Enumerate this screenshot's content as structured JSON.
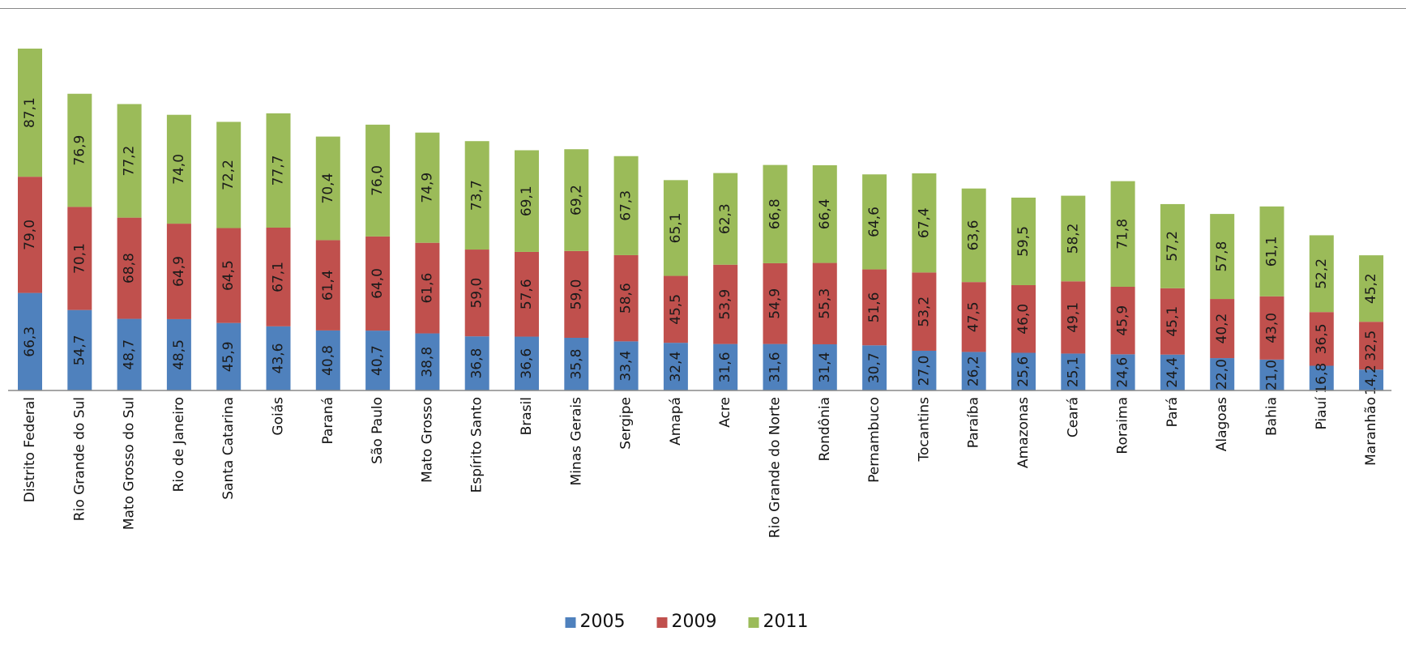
{
  "chart_data": {
    "type": "bar",
    "stacked": true,
    "title": "",
    "xlabel": "",
    "ylabel": "",
    "legend_position": "bottom",
    "grid": false,
    "categories": [
      "Distrito Federal",
      "Rio Grande do Sul",
      "Mato Grosso do Sul",
      "Rio de Janeiro",
      "Santa Catarina",
      "Goiás",
      "Paraná",
      "São Paulo",
      "Mato Grosso",
      "Espírito Santo",
      "Brasil",
      "Minas Gerais",
      "Sergipe",
      "Amapá",
      "Acre",
      "Rio Grande do Norte",
      "Rondônia",
      "Pernambuco",
      "Tocantins",
      "Paraíba",
      "Amazonas",
      "Ceará",
      "Roraima",
      "Pará",
      "Alagoas",
      "Bahia",
      "Piauí",
      "Maranhão"
    ],
    "series": [
      {
        "name": "2005",
        "color": "#4F81BD",
        "values": [
          66.3,
          54.7,
          48.7,
          48.5,
          45.9,
          43.6,
          40.8,
          40.7,
          38.8,
          36.8,
          36.6,
          35.8,
          33.4,
          32.4,
          31.6,
          31.6,
          31.4,
          30.7,
          27.0,
          26.2,
          25.6,
          25.1,
          24.6,
          24.4,
          22.0,
          21.0,
          16.8,
          14.2
        ],
        "labels": [
          "66,3",
          "54,7",
          "48,7",
          "48,5",
          "45,9",
          "43,6",
          "40,8",
          "40,7",
          "38,8",
          "36,8",
          "36,6",
          "35,8",
          "33,4",
          "32,4",
          "31,6",
          "31,6",
          "31,4",
          "30,7",
          "27,0",
          "26,2",
          "25,6",
          "25,1",
          "24,6",
          "24,4",
          "22,0",
          "21,0",
          "16,8",
          "14,2"
        ]
      },
      {
        "name": "2009",
        "color": "#C0504D",
        "values": [
          79.0,
          70.1,
          68.8,
          64.9,
          64.5,
          67.1,
          61.4,
          64.0,
          61.6,
          59.0,
          57.6,
          59.0,
          58.6,
          45.5,
          53.9,
          54.9,
          55.3,
          51.6,
          53.2,
          47.5,
          46.0,
          49.1,
          45.9,
          45.1,
          40.2,
          43.0,
          36.5,
          32.5
        ],
        "labels": [
          "79,0",
          "70,1",
          "68,8",
          "64,9",
          "64,5",
          "67,1",
          "61,4",
          "64,0",
          "61,6",
          "59,0",
          "57,6",
          "59,0",
          "58,6",
          "45,5",
          "53,9",
          "54,9",
          "55,3",
          "51,6",
          "53,2",
          "47,5",
          "46,0",
          "49,1",
          "45,9",
          "45,1",
          "40,2",
          "43,0",
          "36,5",
          "32,5"
        ]
      },
      {
        "name": "2011",
        "color": "#9BBB59",
        "values": [
          87.1,
          76.9,
          77.2,
          74.0,
          72.2,
          77.7,
          70.4,
          76.0,
          74.9,
          73.7,
          69.1,
          69.2,
          67.3,
          65.1,
          62.3,
          66.8,
          66.4,
          64.6,
          67.4,
          63.6,
          59.5,
          58.2,
          71.8,
          57.2,
          57.8,
          61.1,
          52.2,
          45.2
        ],
        "labels": [
          "87,1",
          "76,9",
          "77,2",
          "74,0",
          "72,2",
          "77,7",
          "70,4",
          "76,0",
          "74,9",
          "73,7",
          "69,1",
          "69,2",
          "67,3",
          "65,1",
          "62,3",
          "66,8",
          "66,4",
          "64,6",
          "67,4",
          "63,6",
          "59,5",
          "58,2",
          "71,8",
          "57,2",
          "57,8",
          "61,1",
          "52,2",
          "45,2"
        ]
      }
    ]
  }
}
